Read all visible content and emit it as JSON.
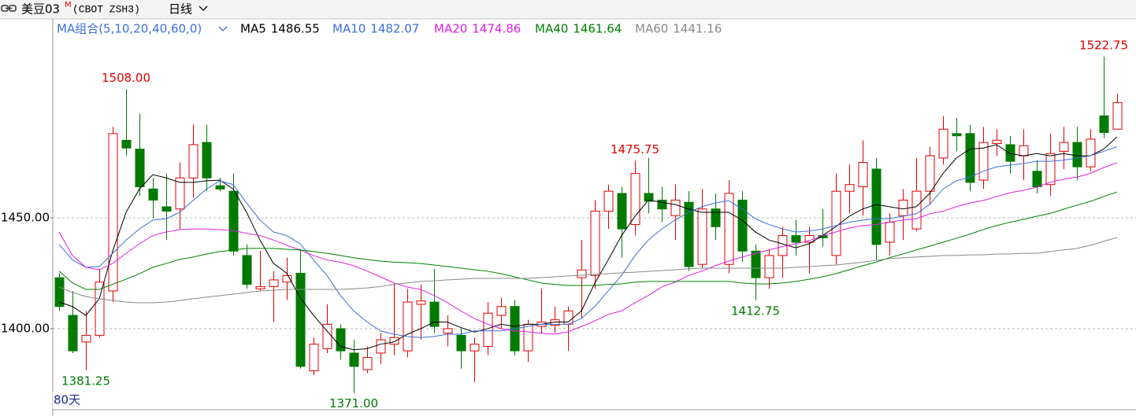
{
  "header": {
    "title": "美豆03",
    "superscript": "M",
    "code": "(CBOT ZSH3)",
    "period": "日线"
  },
  "chart_data": {
    "type": "candlestick",
    "ma_label": "MA组合(5,10,20,40,60,0)",
    "days_label": "80天",
    "ylim": [
      1363.8,
      1532.3
    ],
    "yticks": [
      {
        "value": 1450,
        "label": "1450.00"
      },
      {
        "value": 1400,
        "label": "1400.00"
      }
    ],
    "grid": true,
    "up_color": "#e00000",
    "down_color": "#007a00",
    "open": [
      1423,
      1406,
      1394,
      1397,
      1417,
      1485,
      1481,
      1463,
      1455,
      1454,
      1468,
      1484,
      1464.5,
      1462,
      1433,
      1418,
      1419,
      1421,
      1425,
      1381,
      1391,
      1400,
      1389,
      1381.5,
      1389,
      1393,
      1390,
      1411,
      1412,
      1398,
      1397,
      1390,
      1392,
      1406,
      1410,
      1390,
      1401,
      1401.5,
      1402,
      1423,
      1424,
      1453,
      1461,
      1447,
      1461,
      1458,
      1451,
      1457,
      1429,
      1454,
      1429,
      1458,
      1435,
      1423,
      1433,
      1442,
      1439,
      1442,
      1433,
      1462,
      1464,
      1472,
      1439,
      1451,
      1445,
      1462,
      1477,
      1488,
      1488,
      1467,
      1483.5,
      1483,
      1478,
      1471,
      1465,
      1480,
      1484,
      1473,
      1496,
      1490
    ],
    "high": [
      1425,
      1417,
      1408,
      1427,
      1491,
      1508,
      1497,
      1468,
      1470,
      1475,
      1492,
      1492,
      1468,
      1470,
      1438,
      1435,
      1426,
      1432,
      1436,
      1396,
      1411,
      1402,
      1395,
      1392,
      1398,
      1420,
      1418,
      1420,
      1427,
      1406,
      1400,
      1396,
      1412,
      1414,
      1413,
      1404,
      1418,
      1410,
      1410,
      1440,
      1458,
      1465,
      1464,
      1475.75,
      1477,
      1464,
      1465,
      1462,
      1463,
      1461,
      1467,
      1462,
      1438,
      1436,
      1446,
      1449,
      1446,
      1454,
      1470,
      1474,
      1485,
      1477,
      1452,
      1463,
      1477,
      1482,
      1496,
      1495,
      1492,
      1491,
      1490,
      1487,
      1490,
      1476,
      1488,
      1491,
      1491,
      1490,
      1522.75,
      1506
    ],
    "low": [
      1408,
      1389,
      1381.25,
      1396,
      1412,
      1478,
      1460,
      1450,
      1440,
      1445,
      1459,
      1462,
      1462,
      1433,
      1418,
      1417,
      1403,
      1413,
      1382,
      1379,
      1389,
      1386,
      1371,
      1380,
      1384,
      1388,
      1387,
      1395,
      1398,
      1392,
      1382,
      1376,
      1388,
      1400,
      1388,
      1385,
      1398,
      1398,
      1390,
      1405,
      1418,
      1445,
      1432,
      1442,
      1452,
      1448,
      1440,
      1426,
      1427,
      1440,
      1425,
      1430,
      1412.75,
      1418,
      1423,
      1433,
      1425,
      1437,
      1429,
      1452,
      1451,
      1431,
      1433,
      1440,
      1444,
      1456,
      1474,
      1480,
      1462,
      1463,
      1478,
      1470,
      1467,
      1461,
      1460,
      1472,
      1467,
      1471,
      1486,
      1490
    ],
    "close": [
      1410,
      1390,
      1397,
      1421,
      1488,
      1481.5,
      1464,
      1458,
      1453,
      1468,
      1483,
      1468,
      1463,
      1435,
      1420,
      1419,
      1422,
      1424,
      1383,
      1393,
      1402,
      1390,
      1383,
      1387,
      1395,
      1396,
      1412,
      1412.5,
      1401,
      1400,
      1390,
      1393,
      1407,
      1410,
      1390,
      1402,
      1403,
      1404,
      1408,
      1426.5,
      1453,
      1462,
      1445,
      1470,
      1457.5,
      1454,
      1458,
      1428,
      1454,
      1446,
      1461,
      1435,
      1423,
      1433,
      1442,
      1439,
      1442,
      1441,
      1462,
      1465,
      1475,
      1438,
      1448,
      1458,
      1462,
      1478,
      1490,
      1487,
      1466,
      1484,
      1485,
      1475.5,
      1482.5,
      1464,
      1479,
      1484,
      1473,
      1485.5,
      1488.5,
      1502
    ],
    "series": [
      {
        "name": "MA5",
        "color": "#000000",
        "values": [
          1412,
          1410,
          1406,
          1413.5,
          1435,
          1452.5,
          1463,
          1469.5,
          1468,
          1466,
          1466,
          1466.7,
          1467,
          1463,
          1452.5,
          1440,
          1429.5,
          1425,
          1414,
          1406,
          1399,
          1392,
          1390.5,
          1391,
          1393,
          1394,
          1397.5,
          1400,
          1403,
          1403,
          1400.5,
          1398.5,
          1400,
          1402,
          1401,
          1402,
          1402,
          1403,
          1403,
          1408,
          1420.5,
          1431,
          1442,
          1450.7,
          1458,
          1457,
          1456,
          1454,
          1452.5,
          1452.5,
          1452.5,
          1449,
          1443.6,
          1440,
          1438.3,
          1436.5,
          1438.3,
          1442,
          1446,
          1450.7,
          1454,
          1456,
          1455,
          1454,
          1455,
          1461,
          1470,
          1477,
          1481,
          1481.5,
          1483,
          1479,
          1478,
          1479,
          1478,
          1479,
          1478,
          1478,
          1481,
          1486.55
        ]
      },
      {
        "name": "MA10",
        "color": "#3a6fd8",
        "values": [
          1438,
          1431,
          1427.7,
          1428,
          1434,
          1440,
          1445,
          1449,
          1449.6,
          1452.5,
          1457.8,
          1463,
          1466.7,
          1465,
          1456.7,
          1449,
          1443.6,
          1442,
          1438.3,
          1431,
          1424,
          1415,
          1408,
          1403,
          1399,
          1397.5,
          1396.5,
          1396,
          1396.5,
          1397.5,
          1397.5,
          1399,
          1399,
          1399,
          1400,
          1401,
          1402,
          1402,
          1402,
          1404.6,
          1410,
          1417,
          1424,
          1433,
          1440,
          1445,
          1449,
          1452.5,
          1455,
          1456.7,
          1457.8,
          1454,
          1449.6,
          1447,
          1445,
          1443.6,
          1444,
          1445,
          1446.5,
          1448,
          1449,
          1449.6,
          1449.6,
          1450.7,
          1451.8,
          1456,
          1463,
          1466.7,
          1468.4,
          1471,
          1473,
          1473.8,
          1474.5,
          1475.5,
          1475.5,
          1476,
          1477,
          1478,
          1480,
          1482.07
        ]
      },
      {
        "name": "MA20",
        "color": "#e020e0",
        "values": [
          1443.6,
          1433,
          1427.7,
          1426.6,
          1429.4,
          1434,
          1438.3,
          1442,
          1443.6,
          1444.7,
          1445,
          1445,
          1444.7,
          1444.3,
          1443,
          1442,
          1440,
          1437.6,
          1435.5,
          1433,
          1431,
          1430,
          1428.4,
          1426,
          1423.4,
          1420.6,
          1418.8,
          1417.7,
          1415,
          1411.7,
          1408,
          1404.6,
          1402,
          1400,
          1399,
          1398.6,
          1398,
          1397.5,
          1398.6,
          1401,
          1403.5,
          1406.4,
          1408,
          1411.7,
          1415,
          1418.8,
          1421,
          1424,
          1426,
          1428.4,
          1430.5,
          1432.3,
          1434,
          1435.5,
          1437,
          1438.3,
          1439.7,
          1442,
          1443.6,
          1445.4,
          1446.5,
          1447,
          1448,
          1449,
          1449.6,
          1451.8,
          1453,
          1455,
          1456.7,
          1457.8,
          1459.6,
          1461.3,
          1462.4,
          1463.8,
          1466,
          1467.4,
          1468.4,
          1470,
          1472.7,
          1474.86
        ]
      },
      {
        "name": "MA40",
        "color": "#008000",
        "values": [
          1426,
          1420.6,
          1417.7,
          1417.7,
          1420,
          1422.3,
          1424.8,
          1427.7,
          1429.4,
          1431.2,
          1432.3,
          1433.7,
          1434.8,
          1435.5,
          1436.2,
          1436.2,
          1436.2,
          1435.8,
          1435.5,
          1434.8,
          1434,
          1433,
          1432,
          1431.2,
          1430.5,
          1430,
          1429.8,
          1429.4,
          1428.7,
          1428,
          1427.3,
          1426.6,
          1425.9,
          1424.8,
          1423.4,
          1422,
          1420.6,
          1420,
          1419.5,
          1419.5,
          1419.5,
          1420,
          1420.2,
          1421,
          1421.3,
          1421.3,
          1421.3,
          1421.3,
          1421.3,
          1421.3,
          1421.3,
          1420.6,
          1420.2,
          1420.2,
          1420.6,
          1421.3,
          1422.3,
          1423.4,
          1424.8,
          1426.6,
          1428.4,
          1430,
          1432,
          1433.7,
          1435.5,
          1437.2,
          1439,
          1440.8,
          1442.6,
          1444.7,
          1446.5,
          1448,
          1449.3,
          1450.7,
          1452,
          1453.9,
          1455.7,
          1457.4,
          1459.6,
          1461.64
        ]
      },
      {
        "name": "MA60",
        "color": "#888888",
        "values": [
          1418.8,
          1416.3,
          1414.5,
          1413.5,
          1412.7,
          1412,
          1411.7,
          1411.7,
          1412,
          1412.7,
          1413.5,
          1414.2,
          1414.9,
          1415.6,
          1416.3,
          1417,
          1417.3,
          1417.7,
          1417.7,
          1417.7,
          1417.7,
          1417.7,
          1418,
          1418.4,
          1419,
          1420,
          1420.6,
          1421.3,
          1421.6,
          1422,
          1422.3,
          1422.7,
          1422.7,
          1422.7,
          1422.7,
          1422.7,
          1423,
          1423.4,
          1423.8,
          1424.1,
          1424.5,
          1424.8,
          1425.2,
          1425.5,
          1425.9,
          1426.2,
          1426.6,
          1427,
          1427.3,
          1427.3,
          1427.3,
          1427.3,
          1427.3,
          1427.3,
          1427.3,
          1427.7,
          1428,
          1428.4,
          1428.7,
          1429.4,
          1430,
          1430.8,
          1431.6,
          1432,
          1432.3,
          1432.6,
          1433,
          1433,
          1433.3,
          1433.3,
          1433.7,
          1433.7,
          1434,
          1434,
          1434.8,
          1435.5,
          1436.2,
          1437.6,
          1439.4,
          1441.16
        ]
      }
    ],
    "annotations": [
      {
        "value": 1508,
        "label": "1508.00"
      },
      {
        "value": 1475.75,
        "label": "1475.75"
      },
      {
        "value": 1522.75,
        "label": "1522.75"
      },
      {
        "value": 1381.25,
        "label": "1381.25"
      },
      {
        "value": 1371,
        "label": "1371.00"
      },
      {
        "value": 1412.75,
        "label": "1412.75"
      }
    ]
  }
}
